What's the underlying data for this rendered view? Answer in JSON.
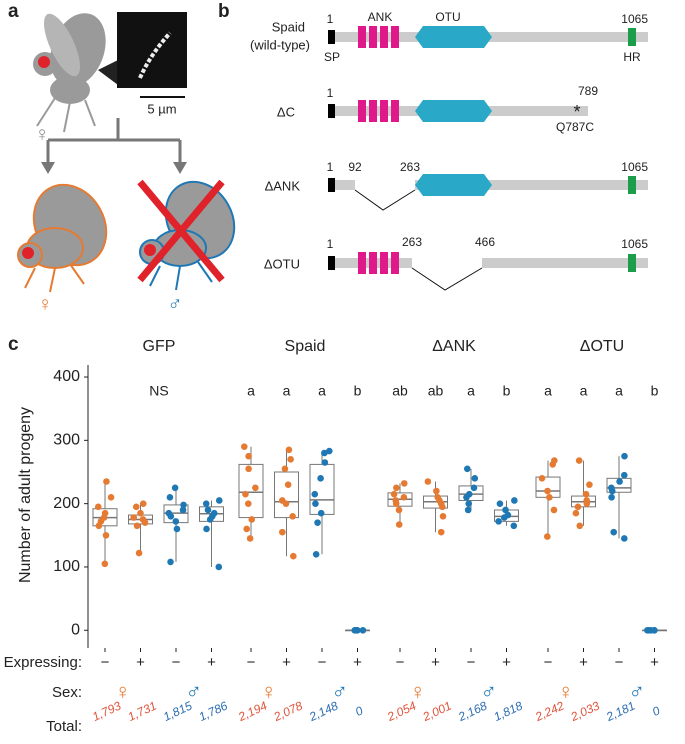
{
  "panel_a": {
    "label": "a",
    "scale_bar": "5 µm",
    "parent_sex": "♀",
    "offspring_female": "♀",
    "offspring_male": "♂"
  },
  "panel_b": {
    "label": "b",
    "wild_type": {
      "name_line1": "Spaid",
      "name_line2": "(wild-type)",
      "start": "1",
      "end": "1065",
      "ank": "ANK",
      "otu": "OTU",
      "sp": "SP",
      "hr": "HR"
    },
    "delta_c": {
      "name": "ΔC",
      "start": "1",
      "end": "789",
      "star": "*",
      "mutation": "Q787C"
    },
    "delta_ank": {
      "name": "ΔANK",
      "start": "1",
      "cut_start": "92",
      "cut_end": "263",
      "end": "1065"
    },
    "delta_otu": {
      "name": "ΔOTU",
      "start": "1",
      "cut_start": "263",
      "cut_end": "466",
      "end": "1065"
    }
  },
  "chart_data": {
    "type": "box",
    "panel_label": "c",
    "ylabel": "Number of adult progeny",
    "ylim": [
      -28,
      419
    ],
    "yticks": [
      0,
      100,
      200,
      300,
      400
    ],
    "row_labels": {
      "expressing": "Expressing:",
      "sex": "Sex:",
      "total": "Total:"
    },
    "sex_colors": [
      "#e57b33",
      "#1f78b4"
    ],
    "total_colors": [
      "#e0533a",
      "#2b6cb0"
    ],
    "facets": [
      {
        "title": "GFP",
        "annotation": "NS",
        "sex_labels": [
          "♀",
          "♂"
        ],
        "groups": [
          {
            "expressing": "−",
            "q1": 165,
            "median": 178,
            "q3": 192,
            "low": 105,
            "high": 235,
            "points": [
              105,
              150,
              165,
              172,
              178,
              185,
              195,
              210,
              235
            ],
            "total": "1,793"
          },
          {
            "expressing": "+",
            "q1": 168,
            "median": 175,
            "q3": 182,
            "low": 122,
            "high": 200,
            "points": [
              122,
              165,
              170,
              175,
              178,
              185,
              195,
              200
            ],
            "total": "1,731"
          },
          {
            "expressing": "−",
            "q1": 170,
            "median": 185,
            "q3": 198,
            "low": 108,
            "high": 225,
            "points": [
              108,
              160,
              172,
              180,
              185,
              190,
              198,
              210,
              225
            ],
            "total": "1,815"
          },
          {
            "expressing": "+",
            "q1": 172,
            "median": 184,
            "q3": 195,
            "low": 100,
            "high": 205,
            "points": [
              100,
              160,
              175,
              180,
              185,
              190,
              200,
              205
            ],
            "total": "1,786"
          }
        ]
      },
      {
        "title": "Spaid",
        "sex_labels": [
          "♀",
          "♂"
        ],
        "groups": [
          {
            "expressing": "−",
            "letter": "a",
            "q1": 178,
            "median": 218,
            "q3": 262,
            "low": 145,
            "high": 290,
            "points": [
              145,
              160,
              175,
              200,
              215,
              225,
              255,
              275,
              290
            ],
            "total": "2,194"
          },
          {
            "expressing": "+",
            "letter": "a",
            "q1": 178,
            "median": 203,
            "q3": 250,
            "low": 117,
            "high": 285,
            "points": [
              117,
              155,
              180,
              200,
              205,
              230,
              255,
              270,
              285
            ],
            "total": "2,078"
          },
          {
            "expressing": "−",
            "letter": "a",
            "q1": 183,
            "median": 206,
            "q3": 262,
            "low": 120,
            "high": 283,
            "points": [
              120,
              170,
              185,
              200,
              215,
              240,
              265,
              280,
              283
            ],
            "total": "2,148"
          },
          {
            "expressing": "+",
            "letter": "b",
            "q1": 0,
            "median": 0,
            "q3": 0,
            "low": 0,
            "high": 0,
            "points": [
              0,
              0,
              0,
              0,
              0
            ],
            "total": "0"
          }
        ]
      },
      {
        "title": "ΔANK",
        "sex_labels": [
          "♀",
          "♂"
        ],
        "groups": [
          {
            "expressing": "−",
            "letter": "ab",
            "q1": 196,
            "median": 207,
            "q3": 217,
            "low": 167,
            "high": 232,
            "points": [
              167,
              190,
              200,
              205,
              210,
              215,
              225,
              232
            ],
            "total": "2,054"
          },
          {
            "expressing": "+",
            "letter": "ab",
            "q1": 193,
            "median": 203,
            "q3": 212,
            "low": 155,
            "high": 235,
            "points": [
              155,
              180,
              195,
              200,
              205,
              210,
              220,
              235
            ],
            "total": "2,001"
          },
          {
            "expressing": "−",
            "letter": "a",
            "q1": 205,
            "median": 215,
            "q3": 228,
            "low": 190,
            "high": 255,
            "points": [
              190,
              200,
              210,
              215,
              225,
              240,
              255
            ],
            "total": "2,168"
          },
          {
            "expressing": "+",
            "letter": "b",
            "q1": 172,
            "median": 180,
            "q3": 190,
            "low": 165,
            "high": 205,
            "points": [
              165,
              172,
              178,
              182,
              190,
              200,
              205
            ],
            "total": "1,818"
          }
        ]
      },
      {
        "title": "ΔOTU",
        "sex_labels": [
          "♀",
          "♂"
        ],
        "groups": [
          {
            "expressing": "−",
            "letter": "a",
            "q1": 210,
            "median": 220,
            "q3": 242,
            "low": 148,
            "high": 268,
            "points": [
              148,
              190,
              210,
              220,
              240,
              262,
              268
            ],
            "total": "2,242"
          },
          {
            "expressing": "+",
            "letter": "a",
            "q1": 195,
            "median": 203,
            "q3": 212,
            "low": 165,
            "high": 268,
            "points": [
              165,
              185,
              195,
              200,
              205,
              215,
              230,
              268
            ],
            "total": "2,033"
          },
          {
            "expressing": "−",
            "letter": "a",
            "q1": 218,
            "median": 225,
            "q3": 240,
            "low": 145,
            "high": 275,
            "points": [
              145,
              155,
              210,
              220,
              225,
              235,
              245,
              275
            ],
            "total": "2,181"
          },
          {
            "expressing": "+",
            "letter": "b",
            "q1": 0,
            "median": 0,
            "q3": 0,
            "low": 0,
            "high": 0,
            "points": [
              0,
              0,
              0,
              0,
              0
            ],
            "total": "0"
          }
        ]
      }
    ]
  }
}
